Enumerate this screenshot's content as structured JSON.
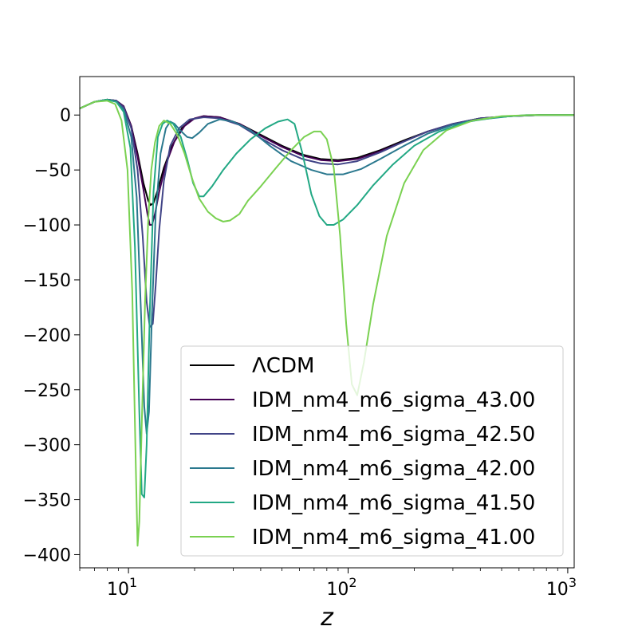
{
  "chart_data": {
    "type": "line",
    "title": "",
    "xlabel": "z",
    "ylabel": "",
    "xscale": "log",
    "xlim": [
      6,
      1070
    ],
    "ylim": [
      -412,
      35
    ],
    "grid": false,
    "legend_position": "lower-right",
    "x_ticks": [
      {
        "value": 10,
        "base": "10",
        "exp": "1"
      },
      {
        "value": 100,
        "base": "10",
        "exp": "2"
      },
      {
        "value": 1000,
        "base": "10",
        "exp": "3"
      }
    ],
    "y_ticks": [
      {
        "value": 0,
        "label": "0"
      },
      {
        "value": -50,
        "label": "−50"
      },
      {
        "value": -100,
        "label": "−100"
      },
      {
        "value": -150,
        "label": "−150"
      },
      {
        "value": -200,
        "label": "−200"
      },
      {
        "value": -250,
        "label": "−250"
      },
      {
        "value": -300,
        "label": "−300"
      },
      {
        "value": -350,
        "label": "−350"
      },
      {
        "value": -400,
        "label": "−400"
      }
    ],
    "series": [
      {
        "name": "ΛCDM",
        "color": "#000000",
        "points": [
          [
            6,
            6
          ],
          [
            7,
            12
          ],
          [
            8,
            14
          ],
          [
            8.8,
            13
          ],
          [
            9.5,
            8
          ],
          [
            10.3,
            -10
          ],
          [
            11,
            -35
          ],
          [
            11.7,
            -62
          ],
          [
            12.3,
            -78
          ],
          [
            12.6,
            -82
          ],
          [
            13,
            -80
          ],
          [
            13.6,
            -68
          ],
          [
            14.5,
            -48
          ],
          [
            15.8,
            -28
          ],
          [
            17.5,
            -12
          ],
          [
            19.5,
            -4
          ],
          [
            22,
            -1
          ],
          [
            26,
            -2
          ],
          [
            32,
            -8
          ],
          [
            40,
            -18
          ],
          [
            50,
            -28
          ],
          [
            62,
            -36
          ],
          [
            75,
            -40
          ],
          [
            90,
            -41
          ],
          [
            110,
            -39
          ],
          [
            140,
            -32
          ],
          [
            180,
            -23
          ],
          [
            230,
            -15
          ],
          [
            300,
            -8
          ],
          [
            400,
            -3
          ],
          [
            550,
            -1
          ],
          [
            750,
            0
          ],
          [
            1070,
            0
          ]
        ]
      },
      {
        "name": "IDM_nm4_m6_sigma_43.00",
        "color": "#440154",
        "points": [
          [
            6,
            6
          ],
          [
            7,
            12
          ],
          [
            8,
            14
          ],
          [
            8.8,
            13
          ],
          [
            9.5,
            8
          ],
          [
            10.3,
            -10
          ],
          [
            11,
            -38
          ],
          [
            11.7,
            -68
          ],
          [
            12.2,
            -90
          ],
          [
            12.5,
            -100
          ],
          [
            12.8,
            -100
          ],
          [
            13.2,
            -90
          ],
          [
            13.8,
            -70
          ],
          [
            14.8,
            -45
          ],
          [
            16.2,
            -24
          ],
          [
            18,
            -10
          ],
          [
            20,
            -3
          ],
          [
            22,
            -1
          ],
          [
            26,
            -2
          ],
          [
            32,
            -8
          ],
          [
            40,
            -19
          ],
          [
            50,
            -29
          ],
          [
            62,
            -37
          ],
          [
            75,
            -41
          ],
          [
            90,
            -42
          ],
          [
            110,
            -40
          ],
          [
            140,
            -33
          ],
          [
            180,
            -24
          ],
          [
            230,
            -15
          ],
          [
            300,
            -8
          ],
          [
            400,
            -3
          ],
          [
            550,
            -1
          ],
          [
            750,
            0
          ],
          [
            1070,
            0
          ]
        ]
      },
      {
        "name": "IDM_nm4_m6_sigma_42.50",
        "color": "#414487",
        "points": [
          [
            6,
            6
          ],
          [
            7,
            12
          ],
          [
            8,
            14
          ],
          [
            8.8,
            13
          ],
          [
            9.5,
            7
          ],
          [
            10.3,
            -12
          ],
          [
            11,
            -50
          ],
          [
            11.6,
            -110
          ],
          [
            12.1,
            -170
          ],
          [
            12.5,
            -193
          ],
          [
            12.9,
            -190
          ],
          [
            13.3,
            -155
          ],
          [
            13.8,
            -105
          ],
          [
            14.5,
            -60
          ],
          [
            15.5,
            -28
          ],
          [
            17,
            -12
          ],
          [
            19,
            -4
          ],
          [
            22,
            -2
          ],
          [
            26,
            -3
          ],
          [
            32,
            -9
          ],
          [
            40,
            -21
          ],
          [
            50,
            -32
          ],
          [
            62,
            -40
          ],
          [
            75,
            -44
          ],
          [
            90,
            -45
          ],
          [
            110,
            -42
          ],
          [
            140,
            -34
          ],
          [
            180,
            -24
          ],
          [
            230,
            -15
          ],
          [
            300,
            -8
          ],
          [
            400,
            -3
          ],
          [
            550,
            -1
          ],
          [
            750,
            0
          ],
          [
            1070,
            0
          ]
        ]
      },
      {
        "name": "IDM_nm4_m6_sigma_42.00",
        "color": "#2a788e",
        "points": [
          [
            6,
            6
          ],
          [
            7,
            12
          ],
          [
            8,
            14
          ],
          [
            8.8,
            12
          ],
          [
            9.5,
            5
          ],
          [
            10.3,
            -20
          ],
          [
            10.9,
            -75
          ],
          [
            11.4,
            -180
          ],
          [
            11.8,
            -265
          ],
          [
            12.1,
            -290
          ],
          [
            12.4,
            -270
          ],
          [
            12.8,
            -180
          ],
          [
            13.3,
            -90
          ],
          [
            14,
            -35
          ],
          [
            14.8,
            -12
          ],
          [
            15.5,
            -6
          ],
          [
            16.2,
            -8
          ],
          [
            17.2,
            -14
          ],
          [
            18.5,
            -20
          ],
          [
            19.5,
            -21
          ],
          [
            21,
            -16
          ],
          [
            23,
            -8
          ],
          [
            26,
            -4
          ],
          [
            30,
            -6
          ],
          [
            36,
            -14
          ],
          [
            44,
            -28
          ],
          [
            55,
            -42
          ],
          [
            68,
            -50
          ],
          [
            80,
            -54
          ],
          [
            95,
            -54
          ],
          [
            115,
            -49
          ],
          [
            140,
            -40
          ],
          [
            180,
            -28
          ],
          [
            230,
            -17
          ],
          [
            300,
            -9
          ],
          [
            400,
            -4
          ],
          [
            550,
            -1
          ],
          [
            750,
            0
          ],
          [
            1070,
            0
          ]
        ]
      },
      {
        "name": "IDM_nm4_m6_sigma_41.50",
        "color": "#22a884",
        "points": [
          [
            6,
            6
          ],
          [
            7,
            12
          ],
          [
            8,
            14
          ],
          [
            8.8,
            12
          ],
          [
            9.5,
            3
          ],
          [
            10.2,
            -30
          ],
          [
            10.7,
            -120
          ],
          [
            11.2,
            -270
          ],
          [
            11.5,
            -345
          ],
          [
            11.8,
            -348
          ],
          [
            12.1,
            -300
          ],
          [
            12.5,
            -180
          ],
          [
            13,
            -70
          ],
          [
            13.6,
            -20
          ],
          [
            14.3,
            -8
          ],
          [
            15,
            -5
          ],
          [
            16,
            -8
          ],
          [
            17.3,
            -20
          ],
          [
            18.5,
            -40
          ],
          [
            19.7,
            -62
          ],
          [
            21,
            -74
          ],
          [
            22,
            -74
          ],
          [
            24,
            -65
          ],
          [
            27,
            -50
          ],
          [
            31,
            -35
          ],
          [
            36,
            -22
          ],
          [
            42,
            -12
          ],
          [
            48,
            -6
          ],
          [
            53,
            -4
          ],
          [
            57,
            -8
          ],
          [
            62,
            -35
          ],
          [
            68,
            -72
          ],
          [
            74,
            -92
          ],
          [
            80,
            -100
          ],
          [
            86,
            -100
          ],
          [
            95,
            -95
          ],
          [
            110,
            -82
          ],
          [
            130,
            -64
          ],
          [
            160,
            -45
          ],
          [
            200,
            -28
          ],
          [
            260,
            -15
          ],
          [
            350,
            -6
          ],
          [
            480,
            -2
          ],
          [
            650,
            0
          ],
          [
            1070,
            0
          ]
        ]
      },
      {
        "name": "IDM_nm4_m6_sigma_41.00",
        "color": "#7ad151",
        "points": [
          [
            6,
            6
          ],
          [
            7,
            12
          ],
          [
            8,
            13
          ],
          [
            8.7,
            10
          ],
          [
            9.3,
            -5
          ],
          [
            9.9,
            -50
          ],
          [
            10.4,
            -160
          ],
          [
            10.8,
            -320
          ],
          [
            11,
            -392
          ],
          [
            11.2,
            -370
          ],
          [
            11.5,
            -280
          ],
          [
            11.9,
            -170
          ],
          [
            12.3,
            -95
          ],
          [
            12.7,
            -50
          ],
          [
            13.2,
            -25
          ],
          [
            13.8,
            -10
          ],
          [
            14.5,
            -5
          ],
          [
            15.5,
            -8
          ],
          [
            16.7,
            -18
          ],
          [
            18,
            -35
          ],
          [
            19.5,
            -58
          ],
          [
            21,
            -76
          ],
          [
            23,
            -88
          ],
          [
            25,
            -94
          ],
          [
            27,
            -97
          ],
          [
            29,
            -96
          ],
          [
            32,
            -90
          ],
          [
            35,
            -78
          ],
          [
            40,
            -65
          ],
          [
            47,
            -48
          ],
          [
            55,
            -32
          ],
          [
            63,
            -20
          ],
          [
            70,
            -15
          ],
          [
            75,
            -15
          ],
          [
            80,
            -22
          ],
          [
            86,
            -48
          ],
          [
            92,
            -110
          ],
          [
            98,
            -190
          ],
          [
            104,
            -245
          ],
          [
            110,
            -255
          ],
          [
            118,
            -225
          ],
          [
            130,
            -172
          ],
          [
            150,
            -110
          ],
          [
            180,
            -62
          ],
          [
            220,
            -32
          ],
          [
            280,
            -14
          ],
          [
            370,
            -5
          ],
          [
            500,
            -1
          ],
          [
            700,
            0
          ],
          [
            1070,
            0
          ]
        ]
      }
    ]
  }
}
